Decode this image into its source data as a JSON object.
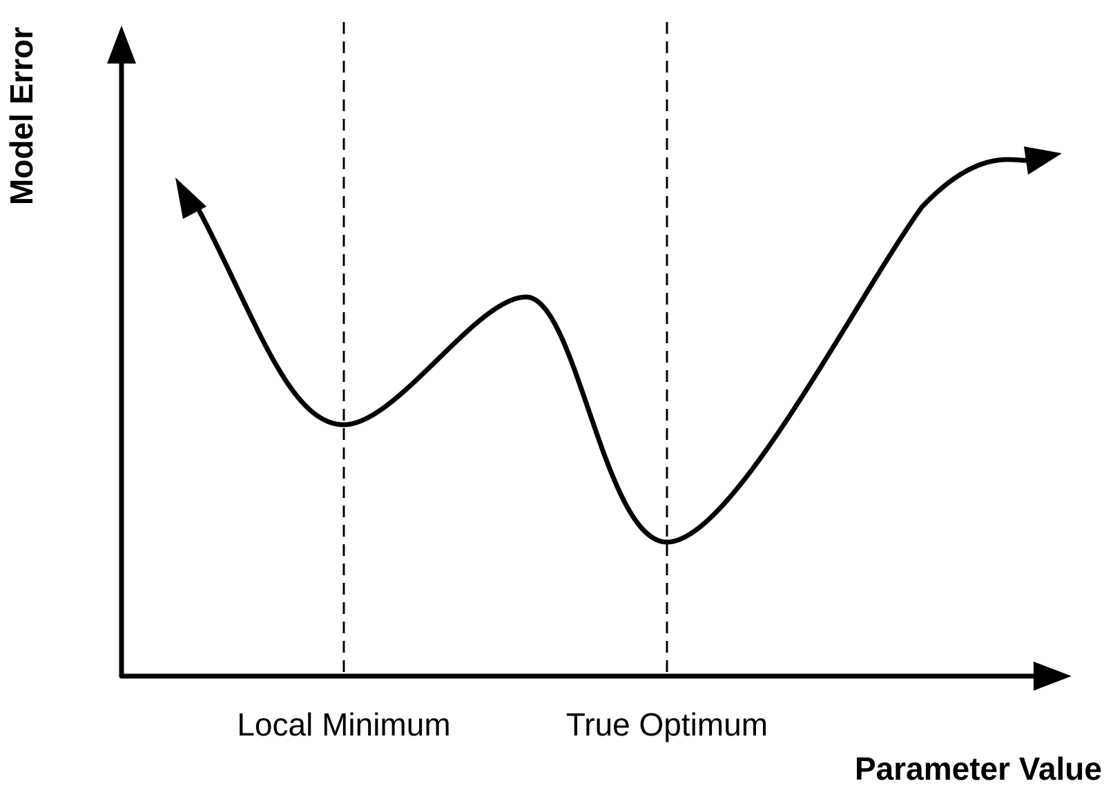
{
  "diagram": {
    "y_axis_label": "Model Error",
    "x_axis_label": "Parameter Value",
    "markers": {
      "local_minimum": "Local Minimum",
      "true_optimum": "True Optimum"
    }
  },
  "colors": {
    "ink": "#000000",
    "background": "#ffffff"
  }
}
